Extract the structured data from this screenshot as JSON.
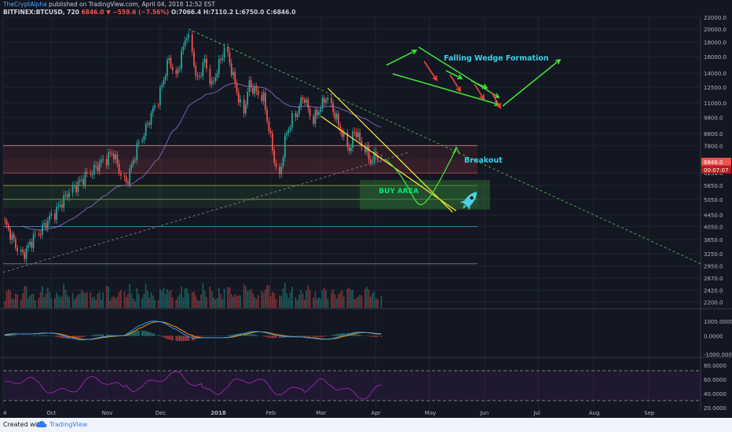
{
  "header": {
    "author": "TheCryptAlpha",
    "published": "published on TradingView.com, April 04, 2018 12:52 EST",
    "symbol": "BITFINEX:BTCUSD, 720",
    "last": "6846.0",
    "change_arrow": "▼",
    "change": "−559.6 (−7.56%)",
    "ohlc": "O:7066.4 H:7110.2 L:6750.0 C:6846.0"
  },
  "footer": {
    "created_with": "Created with",
    "brand": "TradingView",
    "brand_icon": "tradingview-cloud-icon"
  },
  "colors": {
    "background": "#131722",
    "bull": "#26a69a",
    "bear": "#ef5350",
    "wedge_lines": "#ffeb3b",
    "arrows": "#43e03a",
    "annotation_text": "#3ad0e6",
    "buy_area": "#2e7d32",
    "macd_line": "#2196f3",
    "signal_line": "#ff9800",
    "rsi_line": "#9c27b0"
  },
  "annotations": {
    "falling_wedge": "Falling Wedge Formation",
    "breakout": "Breakout",
    "buy_area": "BUY AREA",
    "rocket_icon": "rocket-icon"
  },
  "price_badges": {
    "current": "6846.0",
    "timer": "00:07:07"
  },
  "chart_data": {
    "type": "candlestick",
    "title": "",
    "scale": "log",
    "ylim": [
      2100,
      22000
    ],
    "y_ticks": [
      "22000.0",
      "20000.0",
      "18000.0",
      "16000.0",
      "14000.0",
      "12500.0",
      "11000.0",
      "9800.0",
      "8600.0",
      "7800.0",
      "6250.0",
      "5650.0",
      "5050.0",
      "4450.0",
      "4050.0",
      "3650.0",
      "3250.0",
      "2950.0",
      "2670.0",
      "2420.0",
      "2200.0"
    ],
    "x_ticks": [
      "4",
      "Oct",
      "Nov",
      "Dec",
      "2018",
      "Feb",
      "Mar",
      "Apr",
      "May",
      "Jun",
      "Jul",
      "Aug",
      "Sep"
    ],
    "x_range": [
      "2017-09-04",
      "2018-09-30"
    ],
    "price_keypoints": [
      [
        "2017-09-04",
        4300
      ],
      [
        "2017-09-15",
        3200
      ],
      [
        "2017-09-22",
        3700
      ],
      [
        "2017-10-01",
        4350
      ],
      [
        "2017-10-12",
        5400
      ],
      [
        "2017-10-20",
        6000
      ],
      [
        "2017-11-05",
        7400
      ],
      [
        "2017-11-12",
        5700
      ],
      [
        "2017-11-20",
        8000
      ],
      [
        "2017-11-29",
        10800
      ],
      [
        "2017-12-07",
        16000
      ],
      [
        "2017-12-10",
        13500
      ],
      [
        "2017-12-17",
        19700
      ],
      [
        "2017-12-22",
        13000
      ],
      [
        "2017-12-27",
        15600
      ],
      [
        "2017-12-30",
        12500
      ],
      [
        "2018-01-07",
        17100
      ],
      [
        "2018-01-17",
        10200
      ],
      [
        "2018-01-20",
        12800
      ],
      [
        "2018-01-28",
        11500
      ],
      [
        "2018-02-06",
        6000
      ],
      [
        "2018-02-10",
        8500
      ],
      [
        "2018-02-20",
        11700
      ],
      [
        "2018-02-25",
        9600
      ],
      [
        "2018-03-05",
        11600
      ],
      [
        "2018-03-18",
        7400
      ],
      [
        "2018-03-20",
        9000
      ],
      [
        "2018-03-30",
        6800
      ],
      [
        "2018-04-02",
        7400
      ],
      [
        "2018-04-04",
        6846
      ]
    ],
    "candle_count": 190,
    "volume_pane": true,
    "macd": {
      "y_ticks": [
        "1000.0000",
        "0.0000",
        "-1000.0000"
      ]
    },
    "rsi": {
      "y_ticks": [
        "80.0000",
        "60.0000",
        "40.0000",
        "20.0000"
      ]
    },
    "levels": [
      7800,
      6250,
      5650,
      5050,
      4050,
      3000
    ]
  }
}
